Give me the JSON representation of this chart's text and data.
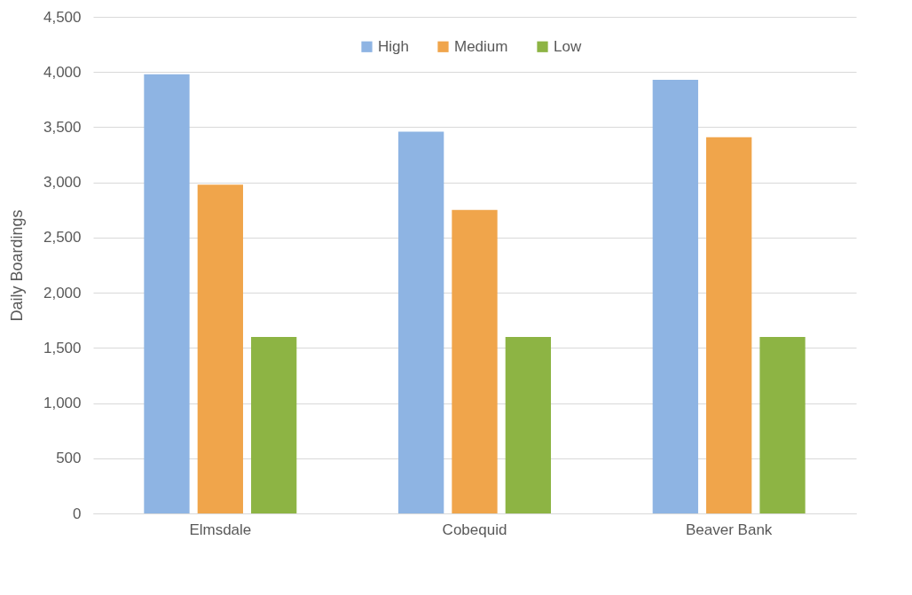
{
  "chart_data": {
    "type": "bar",
    "ylabel": "Daily Boardings",
    "categories": [
      "Elmsdale",
      "Cobequid",
      "Beaver Bank"
    ],
    "series": [
      {
        "name": "High",
        "color": "#8eb4e3",
        "values": [
          3980,
          3460,
          3930
        ]
      },
      {
        "name": "Medium",
        "color": "#f0a54b",
        "values": [
          2980,
          2750,
          3410
        ]
      },
      {
        "name": "Low",
        "color": "#8db444",
        "values": [
          1600,
          1600,
          1600
        ]
      }
    ],
    "ylim": [
      0,
      4500
    ],
    "yticks": [
      0,
      500,
      {
        "value": 1000,
        "label": "1,000"
      },
      {
        "value": 1500,
        "label": "1,500"
      },
      {
        "value": 2000,
        "label": "2,000"
      },
      {
        "value": 2500,
        "label": "2,500"
      },
      {
        "value": 3000,
        "label": "3,000"
      },
      {
        "value": 3500,
        "label": "3,500"
      },
      {
        "value": 4000,
        "label": "4,000"
      },
      {
        "value": 4500,
        "label": "4,500"
      }
    ],
    "grid": "y",
    "legend": "top"
  }
}
